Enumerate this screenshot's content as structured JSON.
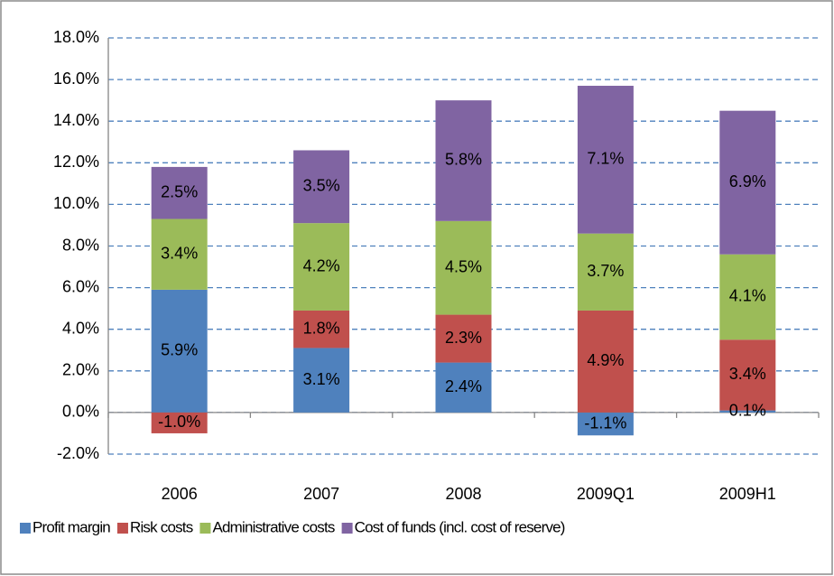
{
  "chart_data": {
    "type": "stacked_bar",
    "categories": [
      "2006",
      "2007",
      "2008",
      "2009Q1",
      "2009H1"
    ],
    "series": [
      {
        "name": "Profit margin",
        "color": "#4f81bd",
        "values": [
          5.9,
          3.1,
          2.4,
          -1.1,
          0.1
        ],
        "value_labels": [
          "5.9%",
          "3.1%",
          "2.4%",
          "-1.1%",
          "0.1%"
        ]
      },
      {
        "name": "Risk costs",
        "color": "#c0504d",
        "values": [
          -1.0,
          1.8,
          2.3,
          4.9,
          3.4
        ],
        "value_labels": [
          "-1.0%",
          "1.8%",
          "2.3%",
          "4.9%",
          "3.4%"
        ]
      },
      {
        "name": "Administrative costs",
        "color": "#9bbb59",
        "values": [
          3.4,
          4.2,
          4.5,
          3.7,
          4.1
        ],
        "value_labels": [
          "3.4%",
          "4.2%",
          "4.5%",
          "3.7%",
          "4.1%"
        ]
      },
      {
        "name": "Cost of funds (incl. cost of reserve)",
        "color": "#8064a2",
        "values": [
          2.5,
          3.5,
          5.8,
          7.1,
          6.9
        ],
        "value_labels": [
          "2.5%",
          "3.5%",
          "5.8%",
          "7.1%",
          "6.9%"
        ]
      }
    ],
    "ylim": [
      -2,
      18
    ],
    "yticks": [
      {
        "value": -2,
        "label": "-2.0%"
      },
      {
        "value": 0,
        "label": "0.0%"
      },
      {
        "value": 2,
        "label": "2.0%"
      },
      {
        "value": 4,
        "label": "4.0%"
      },
      {
        "value": 6,
        "label": "6.0%"
      },
      {
        "value": 8,
        "label": "8.0%"
      },
      {
        "value": 10,
        "label": "10.0%"
      },
      {
        "value": 12,
        "label": "12.0%"
      },
      {
        "value": 14,
        "label": "14.0%"
      },
      {
        "value": 16,
        "label": "16.0%"
      },
      {
        "value": 18,
        "label": "18.0%"
      }
    ],
    "grid": true,
    "legend": "bottom"
  }
}
